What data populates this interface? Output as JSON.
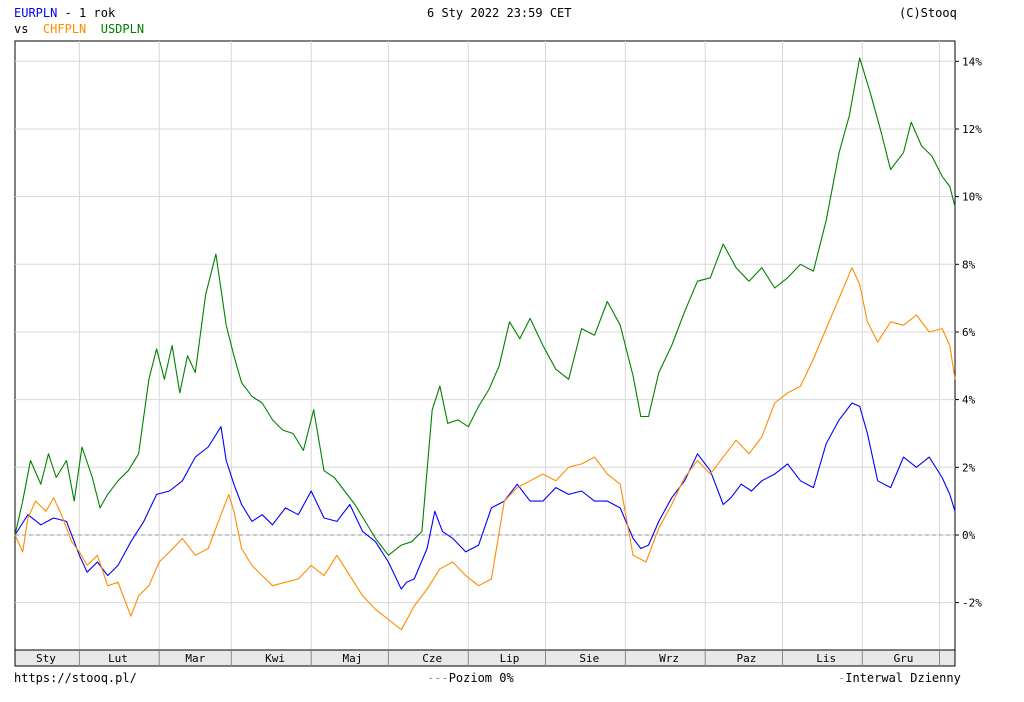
{
  "header": {
    "main_symbol": "EURPLN",
    "period": "- 1 rok",
    "vs_label": "vs",
    "compare_1": "CHFPLN",
    "compare_2": "USDPLN",
    "datetime": "6 Sty 2022 23:59 CET",
    "copyright": "(C)Stooq"
  },
  "footer": {
    "url": "https://stooq.pl/",
    "level_label": "Poziom 0%",
    "interval_label": "Interwal Dzienny"
  },
  "colors": {
    "EURPLN": "#0000ff",
    "CHFPLN": "#ff8c00",
    "USDPLN": "#008000",
    "grid": "#d8d8d8",
    "zero_line": "#999999"
  },
  "chart_data": {
    "type": "line",
    "x_unit": "day of year (2021-01-07 .. 2022-01-06)",
    "xlim": [
      0,
      365
    ],
    "ylim": [
      -3.4,
      14.6
    ],
    "yticks": [
      -2,
      0,
      2,
      4,
      6,
      8,
      10,
      12,
      14
    ],
    "ytick_labels": [
      "-2%",
      "0%",
      "2%",
      "4%",
      "6%",
      "8%",
      "10%",
      "12%",
      "14%"
    ],
    "month_labels": [
      "Sty",
      "Lut",
      "Mar",
      "Kwi",
      "Maj",
      "Cze",
      "Lip",
      "Sie",
      "Wrz",
      "Paz",
      "Lis",
      "Gru"
    ],
    "month_label_x": [
      12,
      40,
      70,
      101,
      131,
      162,
      192,
      223,
      254,
      284,
      315,
      345
    ],
    "month_gridlines_x": [
      25,
      56,
      84,
      115,
      145,
      176,
      206,
      237,
      268,
      298,
      329,
      359
    ],
    "reference_level": 0,
    "grid": true,
    "series": [
      {
        "name": "EURPLN",
        "x": [
          0,
          5,
          10,
          15,
          20,
          25,
          28,
          32,
          36,
          40,
          45,
          50,
          55,
          60,
          65,
          70,
          75,
          80,
          82,
          85,
          88,
          92,
          96,
          100,
          105,
          110,
          115,
          120,
          125,
          130,
          135,
          140,
          145,
          150,
          152,
          155,
          160,
          163,
          166,
          170,
          175,
          180,
          185,
          190,
          195,
          200,
          205,
          210,
          215,
          220,
          225,
          230,
          235,
          240,
          243,
          246,
          250,
          255,
          260,
          265,
          270,
          275,
          278,
          282,
          286,
          290,
          295,
          300,
          305,
          310,
          315,
          320,
          325,
          328,
          331,
          335,
          340,
          345,
          350,
          355,
          360,
          363,
          365
        ],
        "values": [
          0.0,
          0.6,
          0.3,
          0.5,
          0.4,
          -0.6,
          -1.1,
          -0.8,
          -1.2,
          -0.9,
          -0.2,
          0.4,
          1.2,
          1.3,
          1.6,
          2.3,
          2.6,
          3.2,
          2.2,
          1.5,
          0.9,
          0.4,
          0.6,
          0.3,
          0.8,
          0.6,
          1.3,
          0.5,
          0.4,
          0.9,
          0.1,
          -0.2,
          -0.8,
          -1.6,
          -1.4,
          -1.3,
          -0.4,
          0.7,
          0.1,
          -0.1,
          -0.5,
          -0.3,
          0.8,
          1.0,
          1.5,
          1.0,
          1.0,
          1.4,
          1.2,
          1.3,
          1.0,
          1.0,
          0.8,
          -0.1,
          -0.4,
          -0.3,
          0.4,
          1.1,
          1.6,
          2.4,
          1.9,
          0.9,
          1.1,
          1.5,
          1.3,
          1.6,
          1.8,
          2.1,
          1.6,
          1.4,
          2.7,
          3.4,
          3.9,
          3.8,
          3.0,
          1.6,
          1.4,
          2.3,
          2.0,
          2.3,
          1.7,
          1.2,
          0.7
        ]
      },
      {
        "name": "CHFPLN",
        "x": [
          0,
          3,
          5,
          8,
          12,
          15,
          18,
          22,
          25,
          28,
          32,
          36,
          40,
          45,
          48,
          52,
          56,
          60,
          65,
          70,
          75,
          80,
          83,
          85,
          88,
          92,
          96,
          100,
          105,
          110,
          115,
          120,
          125,
          130,
          135,
          140,
          145,
          150,
          155,
          160,
          165,
          170,
          175,
          180,
          185,
          190,
          195,
          200,
          205,
          210,
          215,
          220,
          225,
          230,
          235,
          240,
          245,
          250,
          255,
          260,
          265,
          270,
          275,
          280,
          285,
          290,
          295,
          300,
          305,
          310,
          315,
          320,
          325,
          328,
          331,
          335,
          340,
          345,
          350,
          355,
          360,
          363,
          365
        ],
        "values": [
          0.0,
          -0.5,
          0.5,
          1.0,
          0.7,
          1.1,
          0.6,
          -0.2,
          -0.5,
          -0.9,
          -0.6,
          -1.5,
          -1.4,
          -2.4,
          -1.8,
          -1.5,
          -0.8,
          -0.5,
          -0.1,
          -0.6,
          -0.4,
          0.6,
          1.2,
          0.7,
          -0.4,
          -0.9,
          -1.2,
          -1.5,
          -1.4,
          -1.3,
          -0.9,
          -1.2,
          -0.6,
          -1.2,
          -1.8,
          -2.2,
          -2.5,
          -2.8,
          -2.1,
          -1.6,
          -1.0,
          -0.8,
          -1.2,
          -1.5,
          -1.3,
          1.0,
          1.4,
          1.6,
          1.8,
          1.6,
          2.0,
          2.1,
          2.3,
          1.8,
          1.5,
          -0.6,
          -0.8,
          0.2,
          0.9,
          1.7,
          2.2,
          1.8,
          2.3,
          2.8,
          2.4,
          2.9,
          3.9,
          4.2,
          4.4,
          5.2,
          6.1,
          7.0,
          7.9,
          7.4,
          6.3,
          5.7,
          6.3,
          6.2,
          6.5,
          6.0,
          6.1,
          5.6,
          4.6
        ]
      },
      {
        "name": "USDPLN",
        "x": [
          0,
          3,
          6,
          10,
          13,
          16,
          20,
          23,
          26,
          30,
          33,
          36,
          40,
          44,
          48,
          52,
          55,
          58,
          61,
          64,
          67,
          70,
          74,
          78,
          82,
          85,
          88,
          92,
          96,
          100,
          104,
          108,
          112,
          116,
          120,
          124,
          128,
          132,
          136,
          140,
          145,
          150,
          154,
          158,
          162,
          165,
          168,
          172,
          176,
          180,
          184,
          188,
          192,
          196,
          200,
          205,
          210,
          215,
          220,
          225,
          230,
          235,
          240,
          243,
          246,
          250,
          255,
          260,
          265,
          270,
          275,
          280,
          285,
          290,
          295,
          300,
          305,
          310,
          315,
          320,
          324,
          328,
          332,
          336,
          340,
          345,
          348,
          352,
          356,
          360,
          363,
          365
        ],
        "values": [
          0.0,
          1.0,
          2.2,
          1.5,
          2.4,
          1.7,
          2.2,
          1.0,
          2.6,
          1.7,
          0.8,
          1.2,
          1.6,
          1.9,
          2.4,
          4.6,
          5.5,
          4.6,
          5.6,
          4.2,
          5.3,
          4.8,
          7.1,
          8.3,
          6.2,
          5.3,
          4.5,
          4.1,
          3.9,
          3.4,
          3.1,
          3.0,
          2.5,
          3.7,
          1.9,
          1.7,
          1.3,
          0.9,
          0.4,
          -0.1,
          -0.6,
          -0.3,
          -0.2,
          0.1,
          3.7,
          4.4,
          3.3,
          3.4,
          3.2,
          3.8,
          4.3,
          5.0,
          6.3,
          5.8,
          6.4,
          5.6,
          4.9,
          4.6,
          6.1,
          5.9,
          6.9,
          6.2,
          4.7,
          3.5,
          3.5,
          4.8,
          5.6,
          6.6,
          7.5,
          7.6,
          8.6,
          7.9,
          7.5,
          7.9,
          7.3,
          7.6,
          8.0,
          7.8,
          9.3,
          11.3,
          12.4,
          14.1,
          13.1,
          12.0,
          10.8,
          11.3,
          12.2,
          11.5,
          11.2,
          10.6,
          10.3,
          9.7
        ]
      }
    ]
  }
}
